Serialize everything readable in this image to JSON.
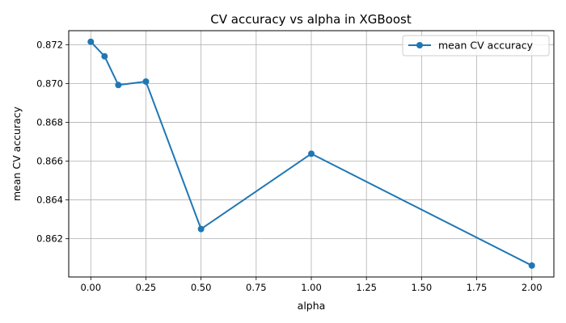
{
  "chart_data": {
    "type": "line",
    "title": "CV accuracy vs alpha in XGBoost",
    "xlabel": "alpha",
    "ylabel": "mean CV accuracy",
    "xlim": [
      -0.1,
      2.1
    ],
    "ylim": [
      0.86003,
      0.87272
    ],
    "xticks": [
      0.0,
      0.25,
      0.5,
      0.75,
      1.0,
      1.25,
      1.5,
      1.75,
      2.0
    ],
    "xtick_labels": [
      "0.00",
      "0.25",
      "0.50",
      "0.75",
      "1.00",
      "1.25",
      "1.50",
      "1.75",
      "2.00"
    ],
    "yticks": [
      0.862,
      0.864,
      0.866,
      0.868,
      0.87,
      0.872
    ],
    "ytick_labels": [
      "0.862",
      "0.864",
      "0.866",
      "0.868",
      "0.870",
      "0.872"
    ],
    "grid": true,
    "legend_position": "top-right",
    "series": [
      {
        "name": "mean CV accuracy",
        "color": "#1f77b4",
        "marker": "circle",
        "x": [
          0.0,
          0.0625,
          0.125,
          0.25,
          0.5,
          1.0,
          2.0
        ],
        "y": [
          0.87215,
          0.8714,
          0.86992,
          0.8701,
          0.8625,
          0.86638,
          0.86062
        ]
      }
    ]
  }
}
